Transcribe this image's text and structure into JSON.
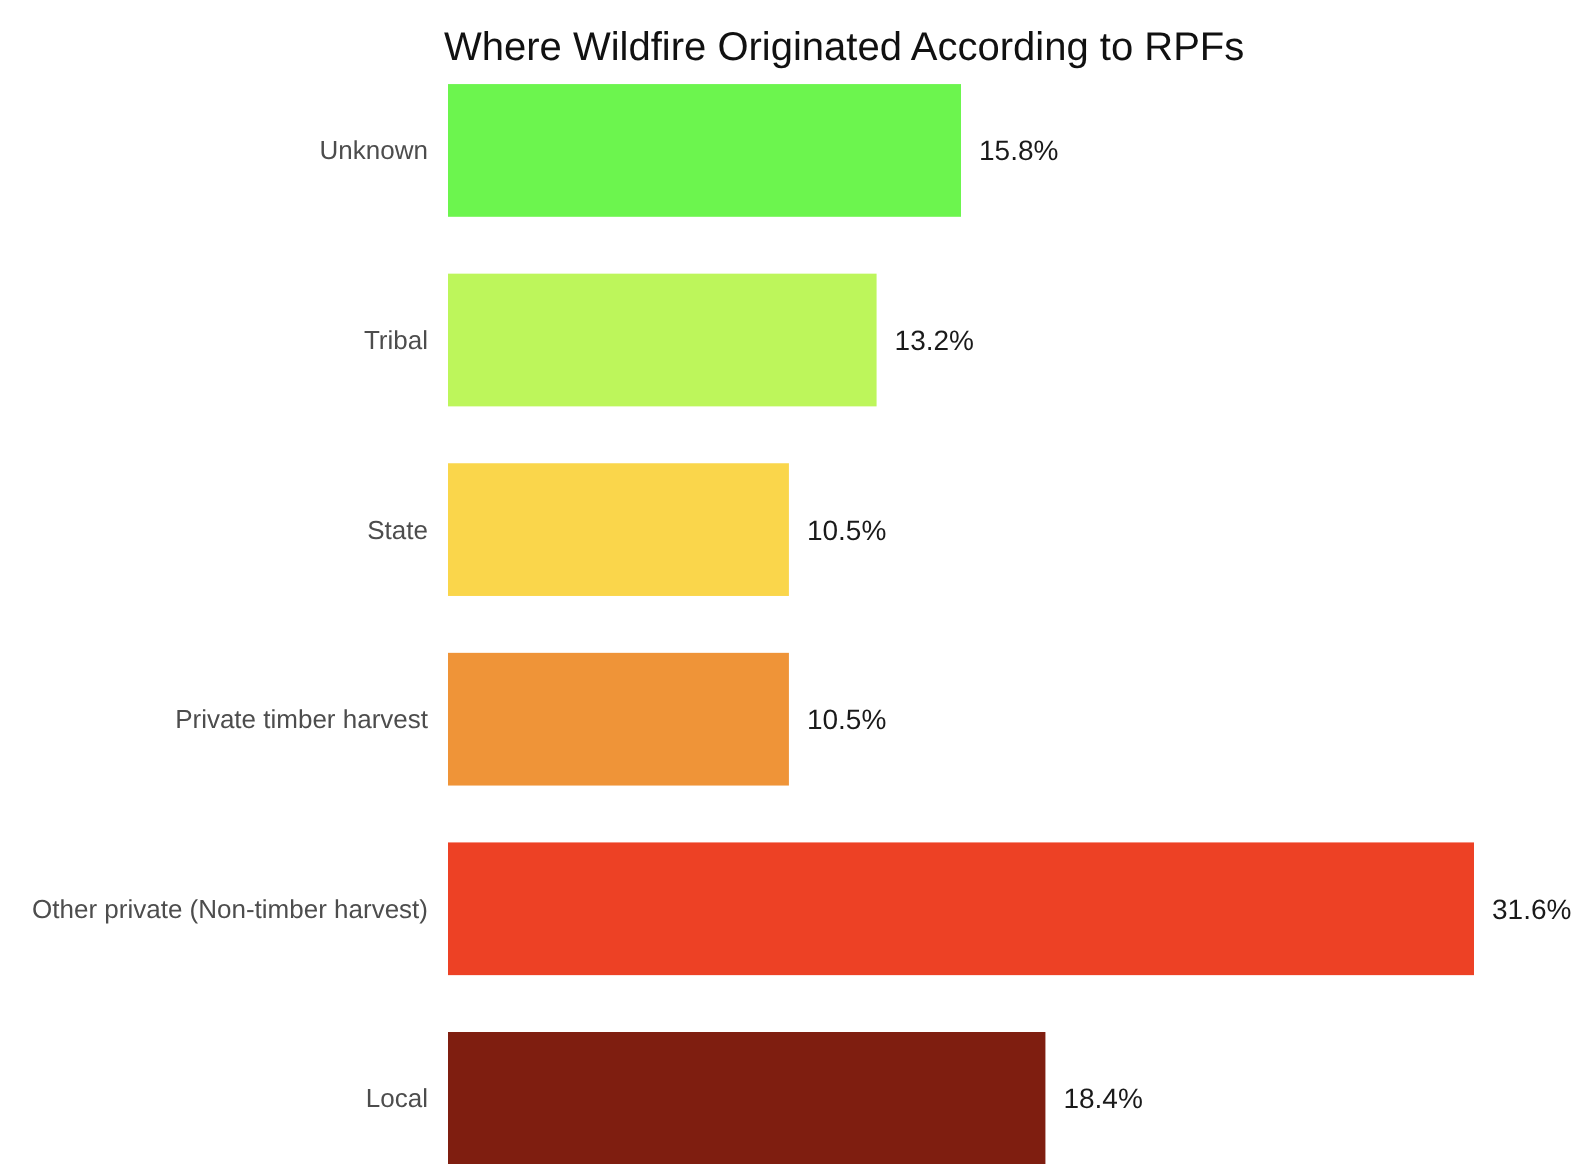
{
  "chart_data": {
    "type": "bar",
    "orientation": "horizontal",
    "title": "Where Wildfire Originated According to RPFs",
    "categories": [
      "Unknown",
      "Tribal",
      "State",
      "Private timber harvest",
      "Other private (Non-timber harvest)",
      "Local"
    ],
    "values": [
      15.8,
      13.2,
      10.5,
      10.5,
      31.6,
      18.4
    ],
    "colors": [
      "#6cf54e",
      "#bdf65b",
      "#fad64b",
      "#ef9438",
      "#ed4125",
      "#7f1e10"
    ],
    "value_labels": [
      "15.8%",
      "13.2%",
      "10.5%",
      "10.5%",
      "31.6%",
      "18.4%"
    ]
  }
}
